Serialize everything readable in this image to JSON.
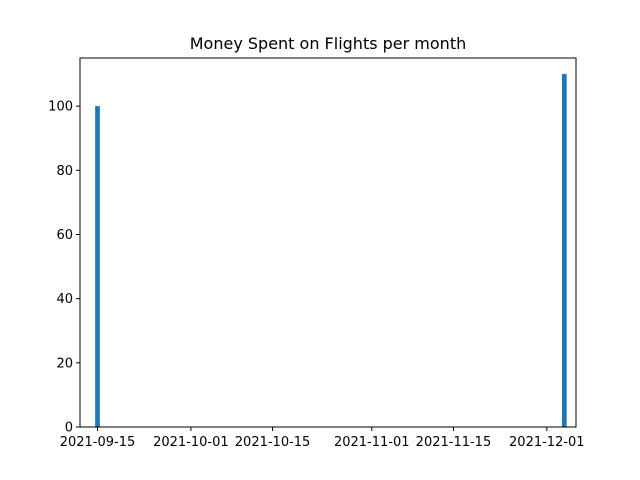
{
  "chart_data": {
    "type": "bar",
    "title": "Money Spent on Flights per month",
    "xlabel": "",
    "ylabel": "",
    "x_type": "date",
    "x_lim": [
      "2021-09-12",
      "2021-12-06"
    ],
    "ylim": [
      0,
      115
    ],
    "grid": false,
    "bar_color": "#1f77b4",
    "x_tick_labels": [
      "2021-09-15",
      "2021-10-01",
      "2021-10-15",
      "2021-11-01",
      "2021-11-15",
      "2021-12-01"
    ],
    "y_ticks": [
      0,
      20,
      40,
      60,
      80,
      100
    ],
    "x": [
      "2021-09-15",
      "2021-12-04"
    ],
    "values": [
      100,
      110
    ]
  }
}
